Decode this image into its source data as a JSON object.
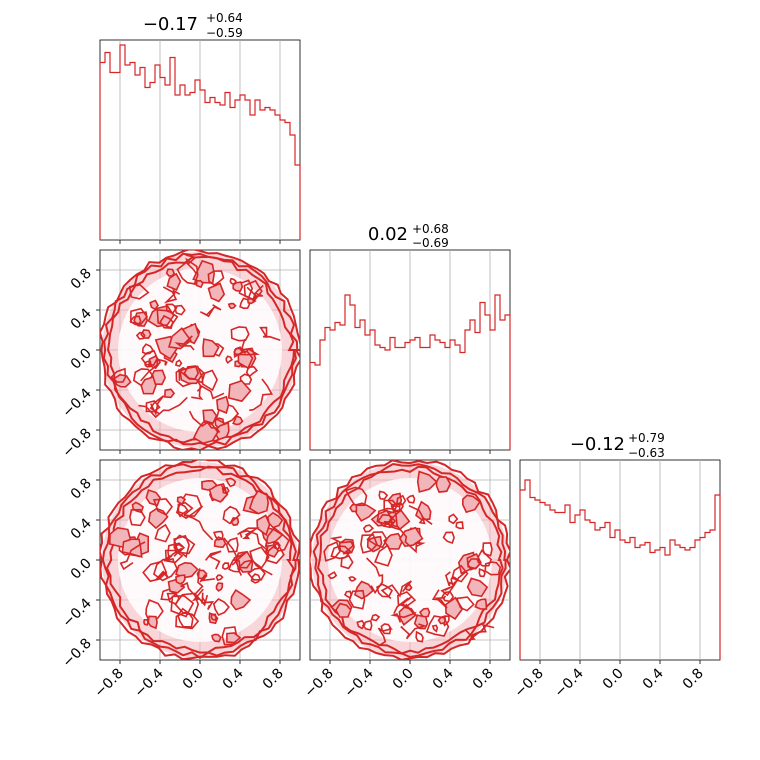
{
  "chart_data": {
    "type": "corner",
    "color": "#d62728",
    "fill_color": "#f2b5b9",
    "grid": true,
    "parameters": [
      {
        "title_value": "−0.17",
        "title_plus": "+0.64",
        "title_minus": "−0.59"
      },
      {
        "title_value": "0.02",
        "title_plus": "+0.68",
        "title_minus": "−0.69"
      },
      {
        "title_value": "−0.12",
        "title_plus": "+0.79",
        "title_minus": "−0.63"
      }
    ],
    "xlim": [
      -1.0,
      1.0
    ],
    "ylim": [
      -1.0,
      1.0
    ],
    "tick_values": [
      -0.8,
      -0.4,
      0.0,
      0.4,
      0.8
    ],
    "tick_labels": [
      "−0.8",
      "−0.4",
      "0.0",
      "0.4",
      "0.8"
    ],
    "histograms": [
      {
        "param": 0,
        "bin_edges_range": [
          -1.0,
          1.0
        ],
        "counts": [
          0.71,
          0.75,
          0.67,
          0.67,
          0.78,
          0.7,
          0.71,
          0.66,
          0.69,
          0.61,
          0.63,
          0.7,
          0.65,
          0.62,
          0.73,
          0.58,
          0.62,
          0.58,
          0.59,
          0.64,
          0.6,
          0.55,
          0.57,
          0.55,
          0.54,
          0.59,
          0.53,
          0.56,
          0.58,
          0.56,
          0.5,
          0.56,
          0.52,
          0.53,
          0.52,
          0.5,
          0.48,
          0.47,
          0.42,
          0.3
        ]
      },
      {
        "param": 1,
        "bin_edges_range": [
          -1.0,
          1.0
        ],
        "counts": [
          0.35,
          0.34,
          0.44,
          0.49,
          0.48,
          0.51,
          0.5,
          0.62,
          0.58,
          0.49,
          0.52,
          0.46,
          0.48,
          0.42,
          0.41,
          0.4,
          0.45,
          0.41,
          0.41,
          0.43,
          0.44,
          0.45,
          0.41,
          0.41,
          0.46,
          0.44,
          0.43,
          0.41,
          0.44,
          0.42,
          0.39,
          0.48,
          0.52,
          0.47,
          0.59,
          0.54,
          0.48,
          0.62,
          0.52,
          0.54
        ]
      },
      {
        "param": 2,
        "bin_edges_range": [
          -1.0,
          1.0
        ],
        "counts": [
          0.68,
          0.72,
          0.65,
          0.64,
          0.63,
          0.62,
          0.6,
          0.59,
          0.59,
          0.62,
          0.55,
          0.58,
          0.6,
          0.56,
          0.55,
          0.52,
          0.53,
          0.55,
          0.49,
          0.52,
          0.48,
          0.47,
          0.49,
          0.45,
          0.46,
          0.47,
          0.43,
          0.44,
          0.45,
          0.42,
          0.48,
          0.46,
          0.45,
          0.44,
          0.45,
          0.48,
          0.49,
          0.51,
          0.52,
          0.66
        ]
      }
    ],
    "contours_2d": [
      {
        "x_param": 0,
        "y_param": 1,
        "shape": "disk",
        "center": [
          0.0,
          0.0
        ],
        "radius": 1.0
      },
      {
        "x_param": 0,
        "y_param": 2,
        "shape": "disk",
        "center": [
          0.0,
          0.0
        ],
        "radius": 1.0
      },
      {
        "x_param": 1,
        "y_param": 2,
        "shape": "disk",
        "center": [
          0.0,
          0.0
        ],
        "radius": 1.0
      }
    ]
  }
}
